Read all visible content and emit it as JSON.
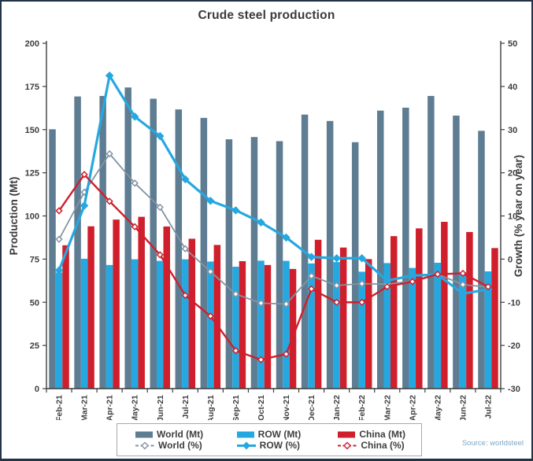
{
  "title": "Crude steel production",
  "source": "Source: worldsteel",
  "legend": {
    "items": [
      {
        "label": "World (Mt)",
        "type": "bar",
        "color": "#5e7d92"
      },
      {
        "label": "ROW (Mt)",
        "type": "bar",
        "color": "#25a8e0"
      },
      {
        "label": "China (Mt)",
        "type": "bar",
        "color": "#d01f2c"
      },
      {
        "label": "World (%)",
        "type": "line",
        "color": "#8494a2",
        "dashed": true,
        "marker_fill": "#ffffff"
      },
      {
        "label": "ROW (%)",
        "type": "line",
        "color": "#25a8e0",
        "dashed": false,
        "marker_fill": "#25a8e0"
      },
      {
        "label": "China (%)",
        "type": "line",
        "color": "#cf1f2c",
        "dashed": true,
        "marker_fill": "#ffffff"
      }
    ]
  },
  "chart_data": {
    "type": "bar+line combo",
    "title": "Crude steel production",
    "categories": [
      "Feb-21",
      "Mar-21",
      "Apr-21",
      "May-21",
      "Jun-21",
      "Jul-21",
      "Aug-21",
      "Sep-21",
      "Oct-21",
      "Nov-21",
      "Dec-21",
      "Jan-22",
      "Feb-22",
      "Mar-22",
      "Apr-22",
      "May-22",
      "Jun-22",
      "Jul-22"
    ],
    "left_axis": {
      "label": "Production (Mt)",
      "min": 0,
      "max": 200,
      "step": 25
    },
    "right_axis": {
      "label": "Growth (% year on year)",
      "min": -30,
      "max": 50,
      "step": 10
    },
    "grid": false,
    "legend_position": "bottom",
    "bar_series": [
      {
        "name": "World (Mt)",
        "axis": "left",
        "color": "#5e7d92",
        "values": [
          150.2,
          169.2,
          169.5,
          174.4,
          167.9,
          161.7,
          156.8,
          144.4,
          145.7,
          143.3,
          158.7,
          155.0,
          142.7,
          161.0,
          162.7,
          169.5,
          158.1,
          149.3
        ]
      },
      {
        "name": "ROW (Mt)",
        "axis": "left",
        "color": "#25a8e0",
        "values": [
          67.2,
          75.2,
          71.6,
          74.9,
          74.0,
          74.9,
          73.6,
          70.6,
          74.1,
          74.0,
          72.5,
          73.3,
          67.7,
          72.7,
          69.9,
          72.9,
          67.4,
          67.9
        ]
      },
      {
        "name": "China (Mt)",
        "axis": "left",
        "color": "#d01f2c",
        "values": [
          83.0,
          94.0,
          97.9,
          99.5,
          93.9,
          86.8,
          83.2,
          73.8,
          71.6,
          69.3,
          86.2,
          81.7,
          75.0,
          88.3,
          92.8,
          96.6,
          90.7,
          81.4
        ]
      }
    ],
    "line_series": [
      {
        "name": "World (%)",
        "axis": "right",
        "color": "#8494a2",
        "width": 1.8,
        "marker": "diamond-open",
        "values": [
          4.6,
          15.5,
          24.4,
          17.6,
          12.0,
          2.4,
          -2.9,
          -8.1,
          -10.2,
          -10.4,
          -3.9,
          -6.1,
          -5.7,
          -5.8,
          -5.1,
          -3.5,
          -5.9,
          -6.5
        ]
      },
      {
        "name": "ROW (%)",
        "axis": "right",
        "color": "#25a8e0",
        "width": 3.2,
        "marker": "diamond-filled",
        "values": [
          -2.6,
          12.4,
          42.5,
          33.0,
          28.5,
          18.5,
          13.5,
          11.3,
          8.5,
          5.0,
          0.5,
          0.2,
          0.2,
          -5.0,
          -3.8,
          -3.6,
          -8.0,
          -7.0
        ]
      },
      {
        "name": "China (%)",
        "axis": "right",
        "color": "#cf1f2c",
        "width": 2.4,
        "marker": "diamond-open",
        "values": [
          11.2,
          19.6,
          13.4,
          7.5,
          1.0,
          -8.4,
          -13.2,
          -21.2,
          -23.3,
          -22.0,
          -6.9,
          -10.0,
          -10.0,
          -6.4,
          -5.2,
          -3.5,
          -3.3,
          -6.4
        ]
      }
    ]
  }
}
